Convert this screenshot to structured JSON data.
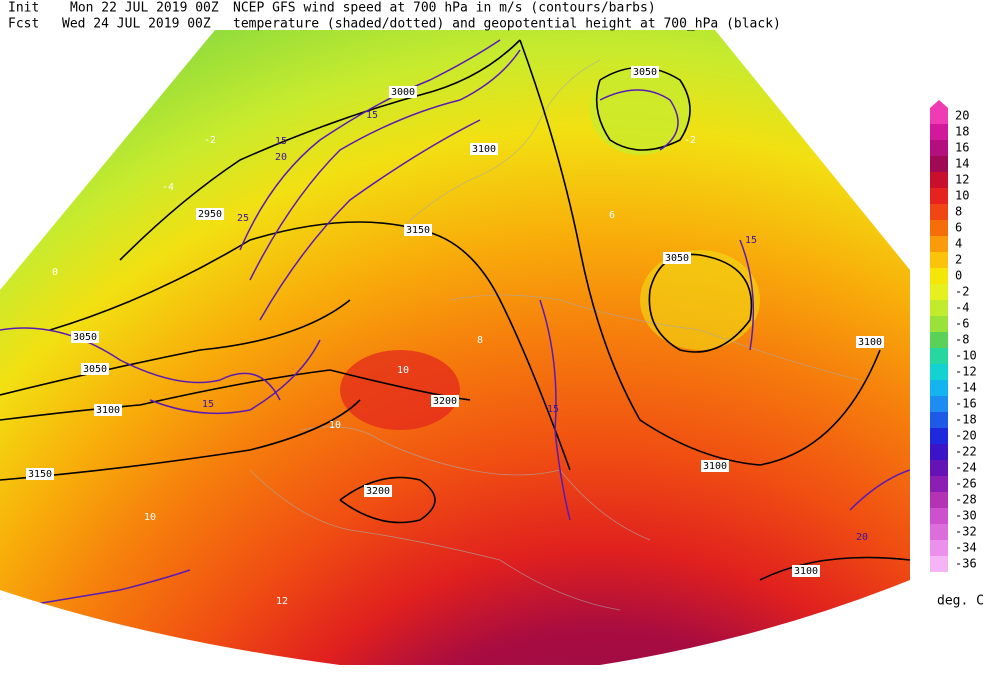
{
  "header": {
    "init_label": "Init",
    "init_time": "Mon 22 JUL 2019 00Z",
    "title_line1": "NCEP GFS wind speed at 700 hPa in m/s (contours/barbs)",
    "fcst_label": "Fcst",
    "fcst_time": "Wed 24 JUL 2019 00Z",
    "title_line2": "temperature (shaded/dotted) and geopotential height at 700_hPa (black)"
  },
  "map": {
    "height_labels": [
      "3000",
      "2950",
      "3150",
      "3050",
      "3100",
      "3050",
      "3050",
      "3100",
      "3200",
      "3150",
      "3200",
      "3100",
      "3100",
      "3100",
      "3050"
    ],
    "temperature_labels": [
      "10",
      "10",
      "12",
      "-2",
      "-4",
      "0",
      "8",
      "6",
      "-2",
      "10"
    ],
    "wind_labels": [
      "15",
      "20",
      "25",
      "15",
      "15",
      "20",
      "15",
      "15"
    ]
  },
  "colorbar": {
    "labels": [
      "20",
      "18",
      "16",
      "14",
      "12",
      "10",
      "8",
      "6",
      "4",
      "2",
      "0",
      "-2",
      "-4",
      "-6",
      "-8",
      "-10",
      "-12",
      "-14",
      "-16",
      "-18",
      "-20",
      "-22",
      "-24",
      "-26",
      "-28",
      "-30",
      "-32",
      "-34",
      "-36"
    ],
    "colors": [
      "#f03cb4",
      "#d2189b",
      "#b40f7d",
      "#a00a55",
      "#c8102d",
      "#e6231e",
      "#f04614",
      "#f56e0a",
      "#f99b0a",
      "#fbc30a",
      "#f5e60a",
      "#e6f01e",
      "#c3eb2d",
      "#9be13c",
      "#5ad25a",
      "#28d7a0",
      "#14d2d2",
      "#14b4f0",
      "#1e8cf0",
      "#1e5ae6",
      "#1e28dc",
      "#3c14c8",
      "#6414b4",
      "#8c1eb4",
      "#b432b4",
      "#cd50cd",
      "#dc6edc",
      "#eb91eb",
      "#f5b4f5"
    ],
    "units": "deg. C"
  }
}
